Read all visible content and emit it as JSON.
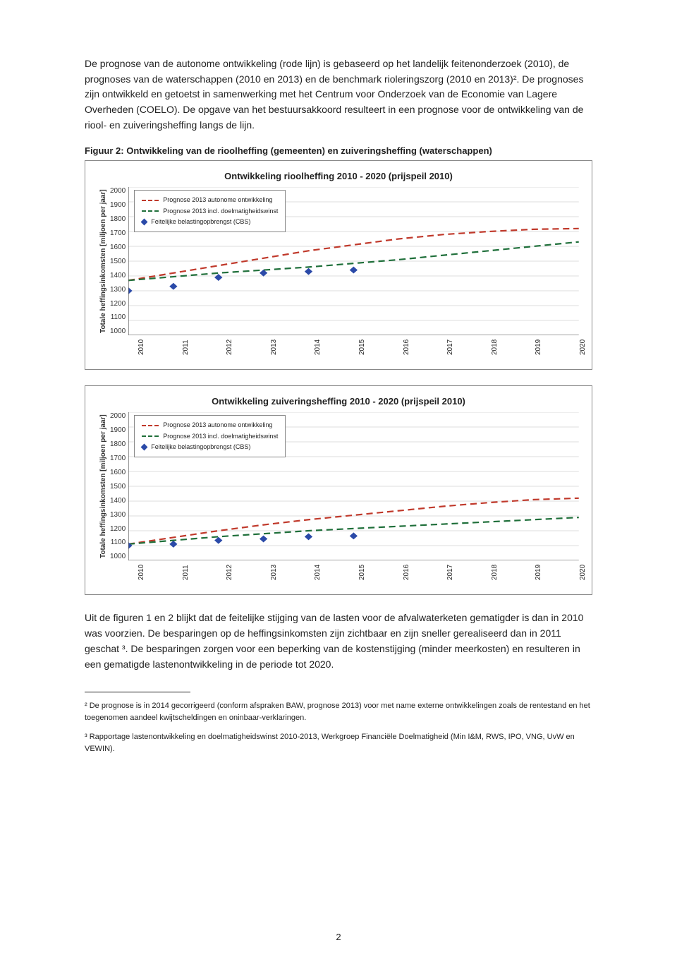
{
  "paragraph1": "De prognose van de autonome ontwikkeling (rode lijn) is gebaseerd op het landelijk feitenonderzoek (2010), de prognoses van de waterschappen (2010 en 2013) en de benchmark rioleringszorg (2010 en 2013)². De prognoses zijn ontwikkeld en getoetst in samenwerking met het Centrum voor Onderzoek van de Economie van Lagere Overheden (COELO). De opgave van het bestuursakkoord resulteert in een prognose voor de ontwikkeling van de riool- en zuiveringsheffing langs de lijn.",
  "figure_caption": "Figuur 2: Ontwikkeling van de rioolheffing (gemeenten) en zuiveringsheffing (waterschappen)",
  "chart1": {
    "title": "Ontwikkeling rioolheffing 2010 - 2020 (prijspeil 2010)",
    "ylabel": "Totale heffingsinkomsten [miljoen per jaar]",
    "ylim": [
      1000,
      2000
    ],
    "ytick_step": 100,
    "years": [
      "2010",
      "2011",
      "2012",
      "2013",
      "2014",
      "2015",
      "2016",
      "2017",
      "2018",
      "2019",
      "2020"
    ],
    "legend": {
      "autonome": "Prognose 2013 autonome ontwikkeling",
      "doelmatig": "Prognose 2013 incl. doelmatigheidswinst",
      "feitelijk": "Feitelijke belastingopbrengst (CBS)"
    },
    "colors": {
      "autonome": "#c0392b",
      "doelmatig": "#1f6f3a",
      "feitelijk": "#2b4aa8",
      "grid": "#cccccc",
      "bg": "#ffffff"
    },
    "series": {
      "autonome": [
        1370,
        1420,
        1470,
        1520,
        1570,
        1610,
        1650,
        1680,
        1700,
        1715,
        1720
      ],
      "doelmatig": [
        1370,
        1395,
        1420,
        1440,
        1460,
        1485,
        1510,
        1540,
        1570,
        1600,
        1630
      ],
      "feitelijk": [
        1300,
        1330,
        1390,
        1420,
        1430,
        1440
      ]
    }
  },
  "chart2": {
    "title": "Ontwikkeling zuiveringsheffing 2010 - 2020 (prijspeil 2010)",
    "ylabel": "Totale heffingsinkomsten [miljoen per jaar]",
    "ylim": [
      1000,
      2000
    ],
    "ytick_step": 100,
    "years": [
      "2010",
      "2011",
      "2012",
      "2013",
      "2014",
      "2015",
      "2016",
      "2017",
      "2018",
      "2019",
      "2020"
    ],
    "legend": {
      "autonome": "Prognose 2013 autonome ontwikkeling",
      "doelmatig": "Prognose 2013 incl. doelmatigheidswinst",
      "feitelijk": "Feitelijke belastingopbrengst (CBS)"
    },
    "colors": {
      "autonome": "#c0392b",
      "doelmatig": "#1f6f3a",
      "feitelijk": "#2b4aa8",
      "grid": "#cccccc",
      "bg": "#ffffff"
    },
    "series": {
      "autonome": [
        1110,
        1155,
        1200,
        1240,
        1275,
        1305,
        1335,
        1365,
        1390,
        1410,
        1420
      ],
      "doelmatig": [
        1110,
        1135,
        1160,
        1180,
        1200,
        1215,
        1230,
        1245,
        1260,
        1275,
        1290
      ],
      "feitelijk": [
        1100,
        1110,
        1135,
        1145,
        1160,
        1165
      ]
    }
  },
  "paragraph2": "Uit de figuren 1 en 2 blijkt dat de feitelijke stijging van de lasten voor de afvalwaterketen gematigder is dan in 2010 was voorzien. De besparingen op de heffingsinkomsten zijn zichtbaar en zijn sneller gerealiseerd dan in 2011 geschat ³. De besparingen zorgen voor een beperking van de kostenstijging (minder meerkosten) en resulteren in een gematigde lastenontwikkeling in de periode tot 2020.",
  "footnote2": "² De prognose is in 2014 gecorrigeerd (conform afspraken BAW, prognose 2013) voor met name externe ontwikkelingen zoals de rentestand en het toegenomen aandeel kwijtscheldingen en oninbaar-verklaringen.",
  "footnote3": "³ Rapportage lastenontwikkeling en doelmatigheidswinst 2010-2013, Werkgroep Financiële Doelmatigheid (Min I&M, RWS, IPO, VNG, UvW en VEWIN).",
  "page_number": "2"
}
